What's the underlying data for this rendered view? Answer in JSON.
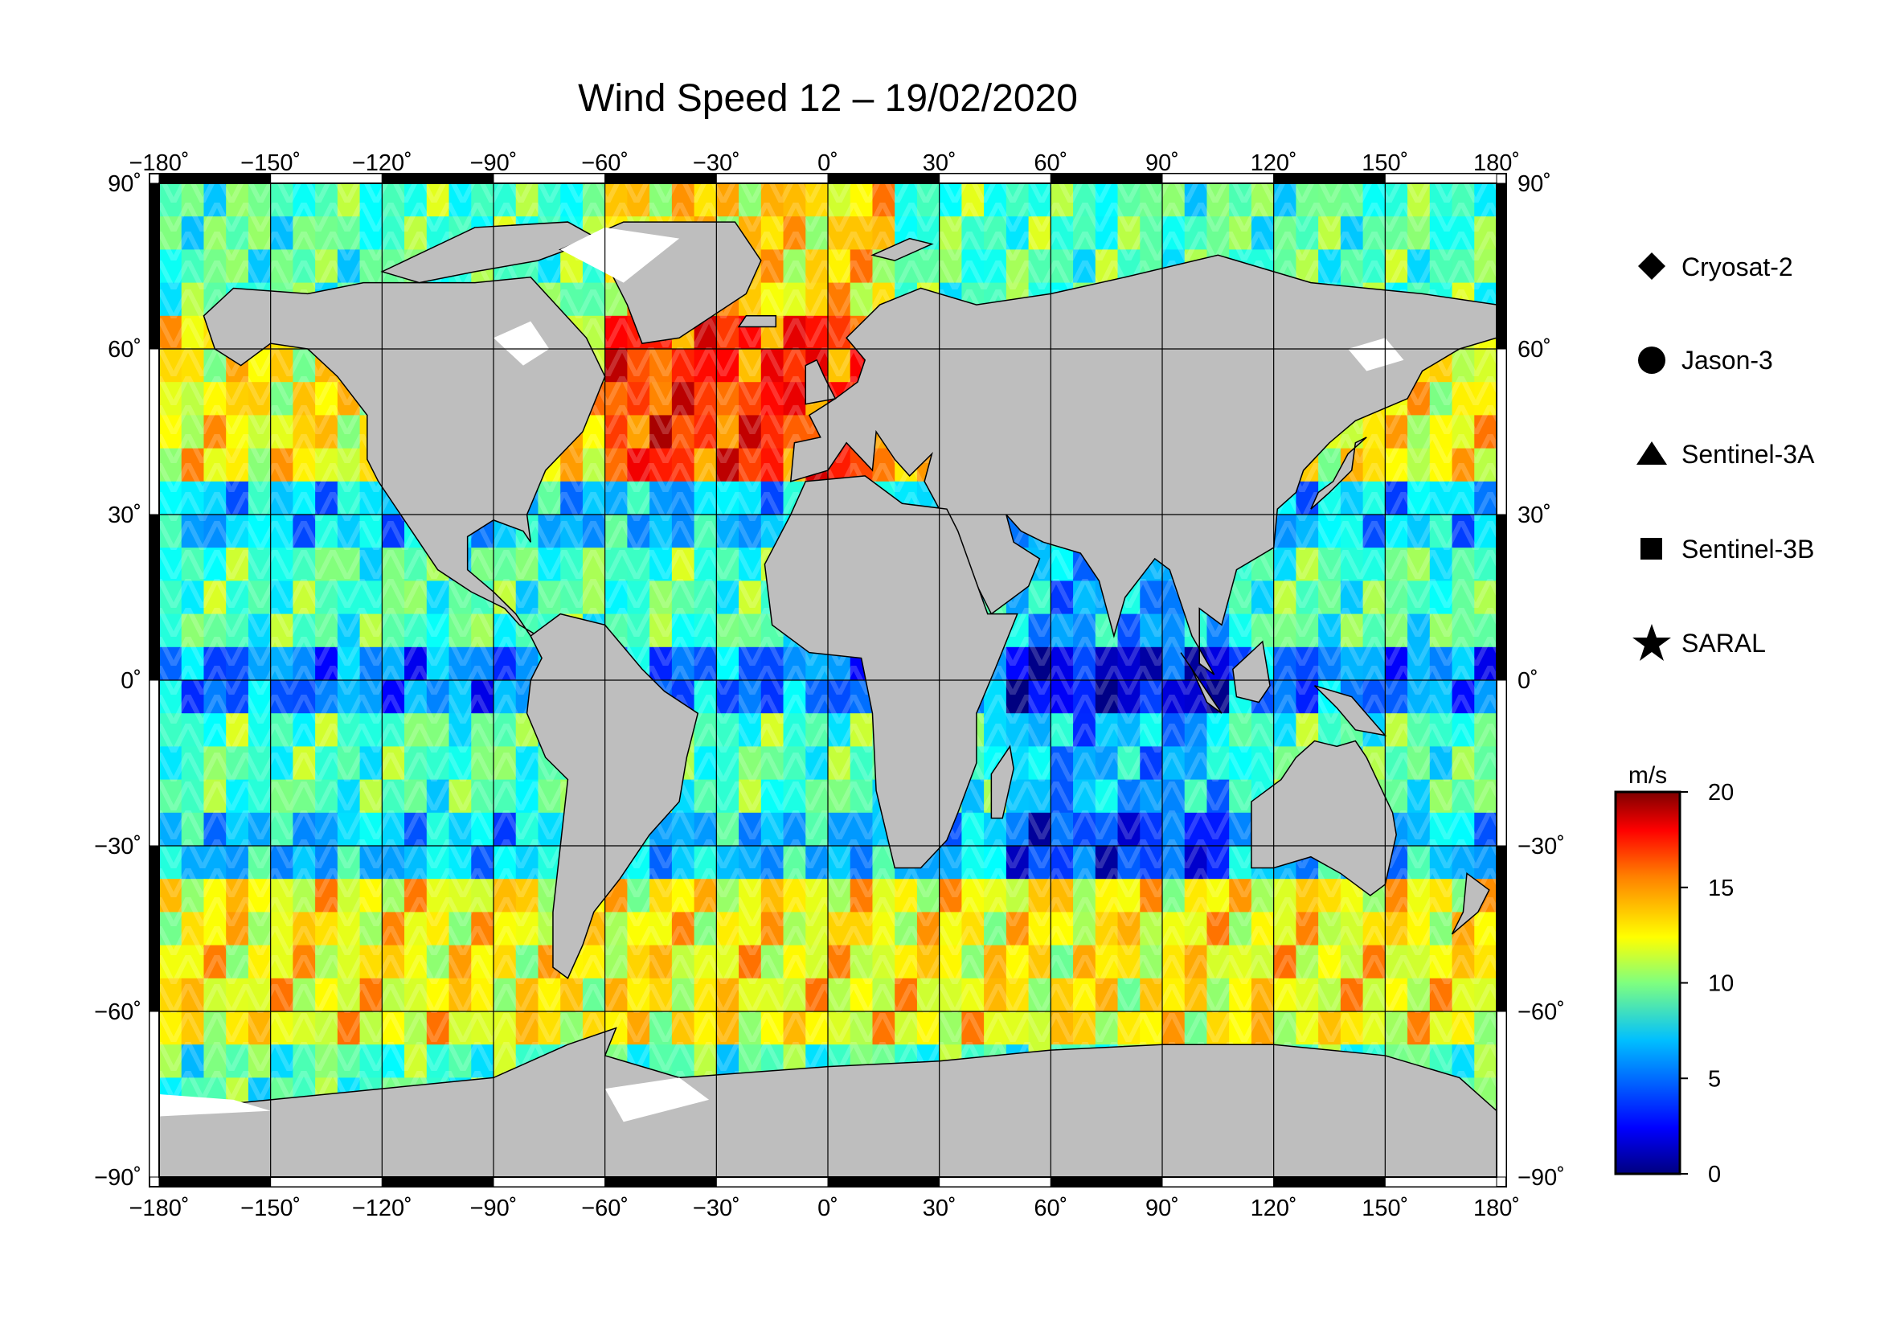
{
  "title": "Wind Speed 12 – 19/02/2020",
  "map": {
    "projection": "equirectangular",
    "lon_range": [
      -180,
      180
    ],
    "lat_range": [
      -90,
      90
    ],
    "lon_ticks": [
      "−180˚",
      "−150˚",
      "−120˚",
      "−90˚",
      "−60˚",
      "−30˚",
      "0˚",
      "30˚",
      "60˚",
      "90˚",
      "120˚",
      "150˚",
      "180˚"
    ],
    "lat_ticks": [
      "90˚",
      "60˚",
      "30˚",
      "0˚",
      "−30˚",
      "−60˚",
      "−90˚"
    ],
    "grid": true,
    "land_color": "#bebebe",
    "ice_color": "#ffffff",
    "ocean_field": "Wind speed along-track from altimeter missions (high in North Atlantic and Southern Ocean, low near equator and Indian Ocean)"
  },
  "legend": {
    "items": [
      {
        "symbol": "diamond",
        "label": "Cryosat-2"
      },
      {
        "symbol": "circle",
        "label": "Jason-3"
      },
      {
        "symbol": "triangle",
        "label": "Sentinel-3A"
      },
      {
        "symbol": "square",
        "label": "Sentinel-3B"
      },
      {
        "symbol": "star",
        "label": "SARAL"
      }
    ]
  },
  "colorbar": {
    "unit": "m/s",
    "min": 0,
    "max": 20,
    "ticks": [
      "20",
      "15",
      "10",
      "5",
      "0"
    ],
    "colormap": "jet",
    "colors": [
      "#00007f",
      "#0000ff",
      "#007fff",
      "#00ffff",
      "#7fff7f",
      "#ffff00",
      "#ff7f00",
      "#ff0000",
      "#7f0000"
    ]
  }
}
